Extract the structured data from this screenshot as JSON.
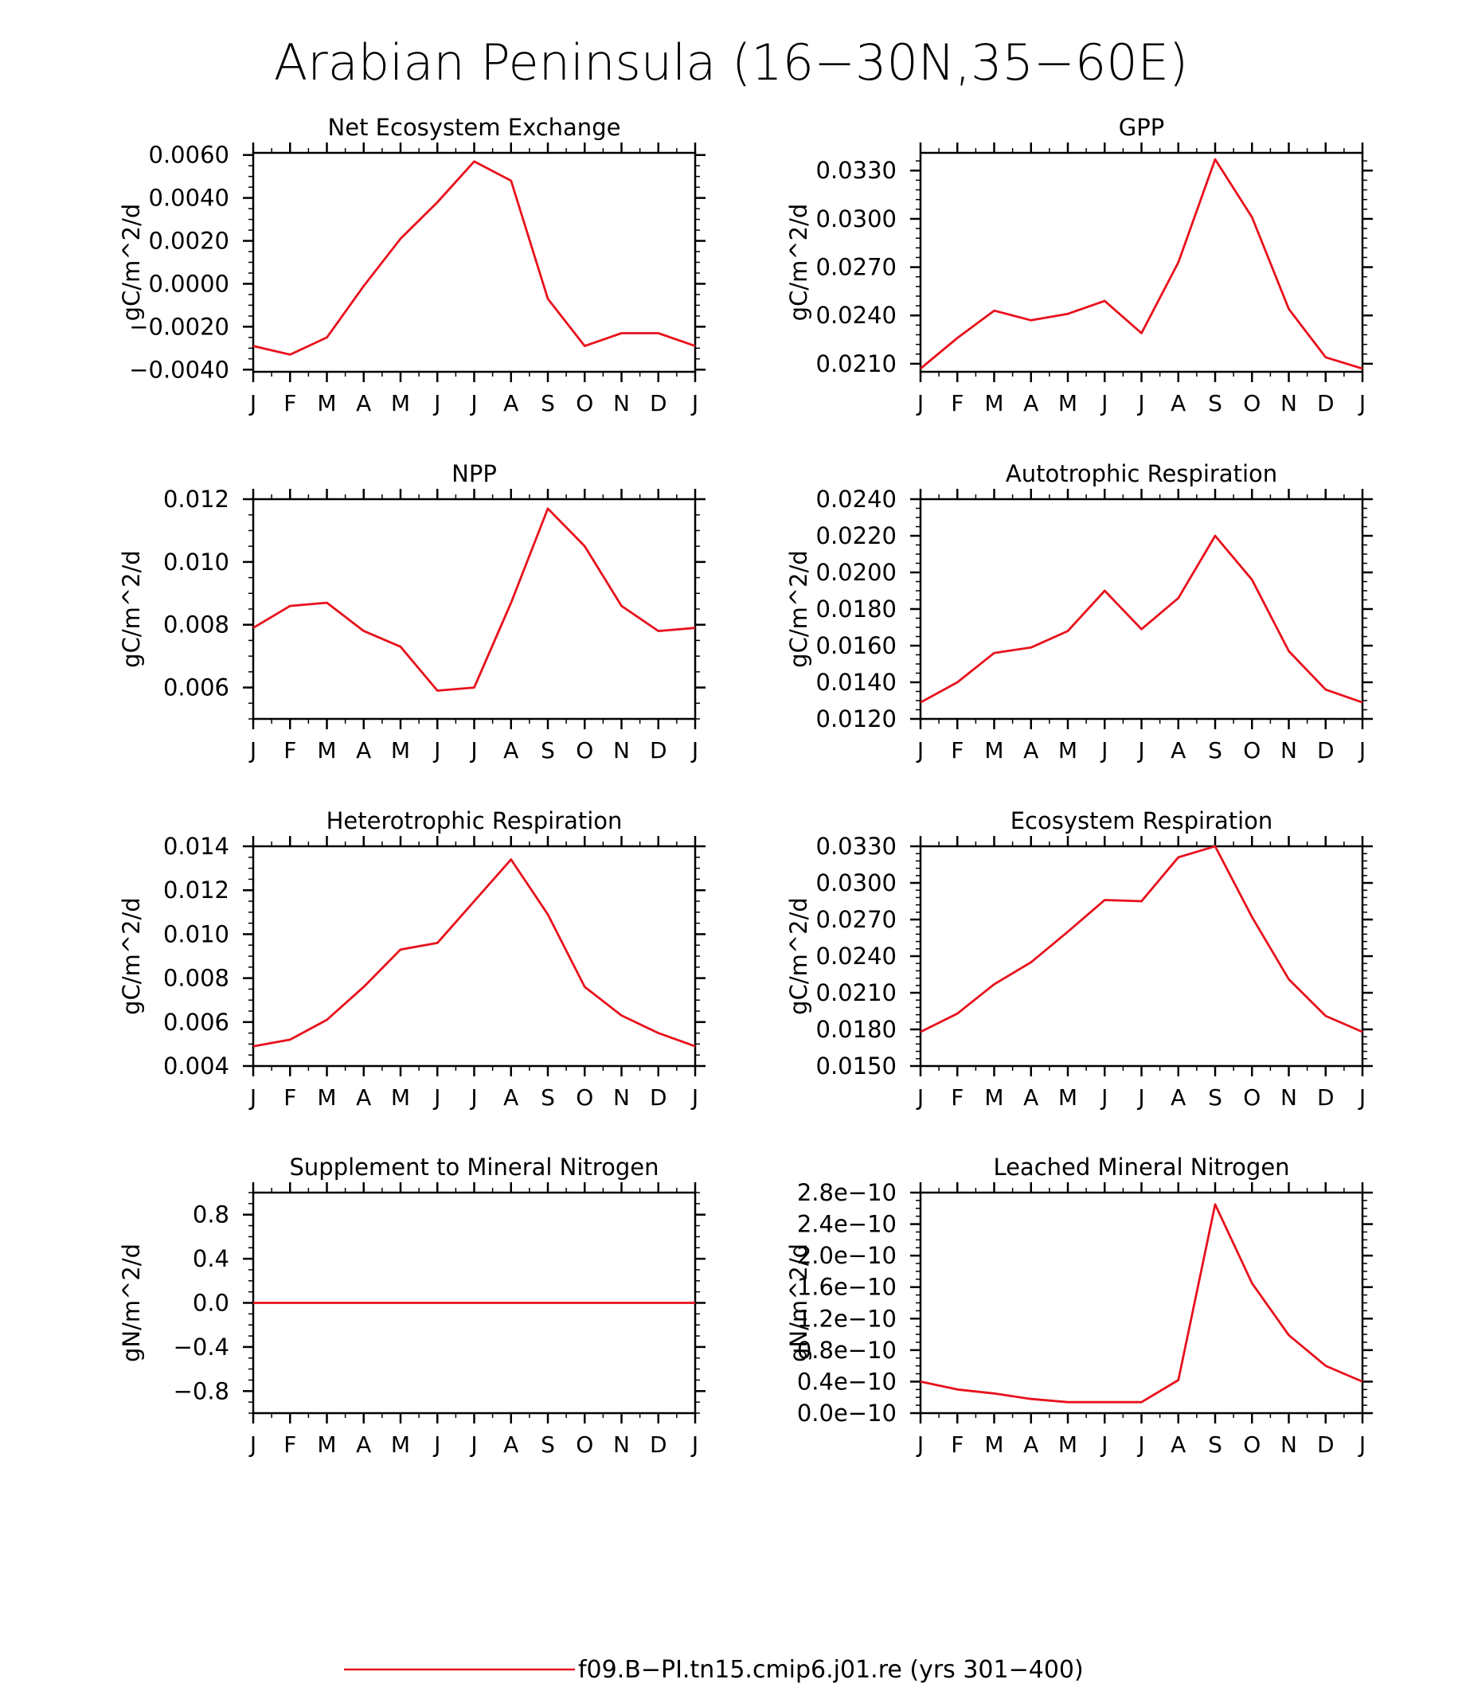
{
  "title": "Arabian Peninsula (16−30N,35−60E)",
  "colors": {
    "series": "#e8111c",
    "axis": "#000000"
  },
  "legend": {
    "label": "f09.B−PI.tn15.cmip6.j01.re (yrs 301−400)",
    "placement": "bottom-center"
  },
  "x_tick_labels": [
    "J",
    "F",
    "M",
    "A",
    "M",
    "J",
    "J",
    "A",
    "S",
    "O",
    "N",
    "D",
    "J"
  ],
  "chart_data": [
    {
      "type": "line",
      "title": "Net Ecosystem Exchange",
      "ylabel": "gC/m^2/d",
      "ylim": [
        -0.0041,
        0.0061
      ],
      "yticks": [
        -0.004,
        -0.002,
        0.0,
        0.002,
        0.004,
        0.006
      ],
      "ytick_labels": [
        "−0.0040",
        "−0.0020",
        "0.0000",
        "0.0020",
        "0.0040",
        "0.0060"
      ],
      "yminor": 0.0005,
      "values": [
        -0.0029,
        -0.0033,
        -0.0025,
        -0.0001,
        0.0021,
        0.0038,
        0.0057,
        0.0048,
        -0.0007,
        -0.0029,
        -0.0023,
        -0.0023,
        -0.0029
      ]
    },
    {
      "type": "line",
      "title": "GPP",
      "ylabel": "gC/m^2/d",
      "ylim": [
        0.0205,
        0.0341
      ],
      "yticks": [
        0.021,
        0.024,
        0.027,
        0.03,
        0.033
      ],
      "ytick_labels": [
        "0.0210",
        "0.0240",
        "0.0270",
        "0.0300",
        "0.0330"
      ],
      "yminor": 0.0006,
      "values": [
        0.0207,
        0.0226,
        0.0243,
        0.0237,
        0.0241,
        0.0249,
        0.0229,
        0.0273,
        0.0337,
        0.0301,
        0.0244,
        0.0214,
        0.0207
      ]
    },
    {
      "type": "line",
      "title": "NPP",
      "ylabel": "gC/m^2/d",
      "ylim": [
        0.005,
        0.012
      ],
      "yticks": [
        0.006,
        0.008,
        0.01,
        0.012
      ],
      "ytick_labels": [
        "0.006",
        "0.008",
        "0.010",
        "0.012"
      ],
      "yminor": 0.0005,
      "values": [
        0.0079,
        0.0086,
        0.0087,
        0.0078,
        0.0073,
        0.0059,
        0.006,
        0.0087,
        0.0117,
        0.0105,
        0.0086,
        0.0078,
        0.0079
      ]
    },
    {
      "type": "line",
      "title": "Autotrophic Respiration",
      "ylabel": "gC/m^2/d",
      "ylim": [
        0.012,
        0.024
      ],
      "yticks": [
        0.012,
        0.014,
        0.016,
        0.018,
        0.02,
        0.022,
        0.024
      ],
      "ytick_labels": [
        "0.0120",
        "0.0140",
        "0.0160",
        "0.0180",
        "0.0200",
        "0.0220",
        "0.0240"
      ],
      "yminor": 0.0005,
      "values": [
        0.0129,
        0.014,
        0.0156,
        0.0159,
        0.0168,
        0.019,
        0.0169,
        0.0186,
        0.022,
        0.0196,
        0.0157,
        0.0136,
        0.0129
      ]
    },
    {
      "type": "line",
      "title": "Heterotrophic Respiration",
      "ylabel": "gC/m^2/d",
      "ylim": [
        0.004,
        0.014
      ],
      "yticks": [
        0.004,
        0.006,
        0.008,
        0.01,
        0.012,
        0.014
      ],
      "ytick_labels": [
        "0.004",
        "0.006",
        "0.008",
        "0.010",
        "0.012",
        "0.014"
      ],
      "yminor": 0.0005,
      "values": [
        0.0049,
        0.0052,
        0.0061,
        0.0076,
        0.0093,
        0.0096,
        0.0115,
        0.0134,
        0.0109,
        0.0076,
        0.0063,
        0.0055,
        0.0049
      ]
    },
    {
      "type": "line",
      "title": "Ecosystem Respiration",
      "ylabel": "gC/m^2/d",
      "ylim": [
        0.015,
        0.033
      ],
      "yticks": [
        0.015,
        0.018,
        0.021,
        0.024,
        0.027,
        0.03,
        0.033
      ],
      "ytick_labels": [
        "0.0150",
        "0.0180",
        "0.0210",
        "0.0240",
        "0.0270",
        "0.0300",
        "0.0330"
      ],
      "yminor": 0.0006,
      "values": [
        0.0178,
        0.0193,
        0.0217,
        0.0235,
        0.026,
        0.0286,
        0.0285,
        0.0321,
        0.033,
        0.0272,
        0.0221,
        0.0191,
        0.0178
      ]
    },
    {
      "type": "line",
      "title": "Supplement to Mineral Nitrogen",
      "ylabel": "gN/m^2/d",
      "ylim": [
        -1.0,
        1.0
      ],
      "yticks": [
        -0.8,
        -0.4,
        0.0,
        0.4,
        0.8
      ],
      "ytick_labels": [
        "−0.8",
        "−0.4",
        "0.0",
        "0.4",
        "0.8"
      ],
      "yminor": 0.1,
      "values": [
        0,
        0,
        0,
        0,
        0,
        0,
        0,
        0,
        0,
        0,
        0,
        0,
        0
      ]
    },
    {
      "type": "line",
      "title": "Leached Mineral Nitrogen",
      "ylabel": "gN/m^2/d",
      "ylim": [
        0.0,
        2.8e-10
      ],
      "yticks": [
        0.0,
        4e-11,
        8e-11,
        1.2e-10,
        1.6e-10,
        2e-10,
        2.4e-10,
        2.8e-10
      ],
      "ytick_labels": [
        "0.0e−10",
        "0.4e−10",
        "0.8e−10",
        "1.2e−10",
        "1.6e−10",
        "2.0e−10",
        "2.4e−10",
        "2.8e−10"
      ],
      "yminor": 1e-11,
      "values": [
        4e-11,
        3e-11,
        2.5e-11,
        1.8e-11,
        1.4e-11,
        1.4e-11,
        1.4e-11,
        4.2e-11,
        2.65e-10,
        1.65e-10,
        9.9e-11,
        6e-11,
        4e-11
      ]
    }
  ]
}
